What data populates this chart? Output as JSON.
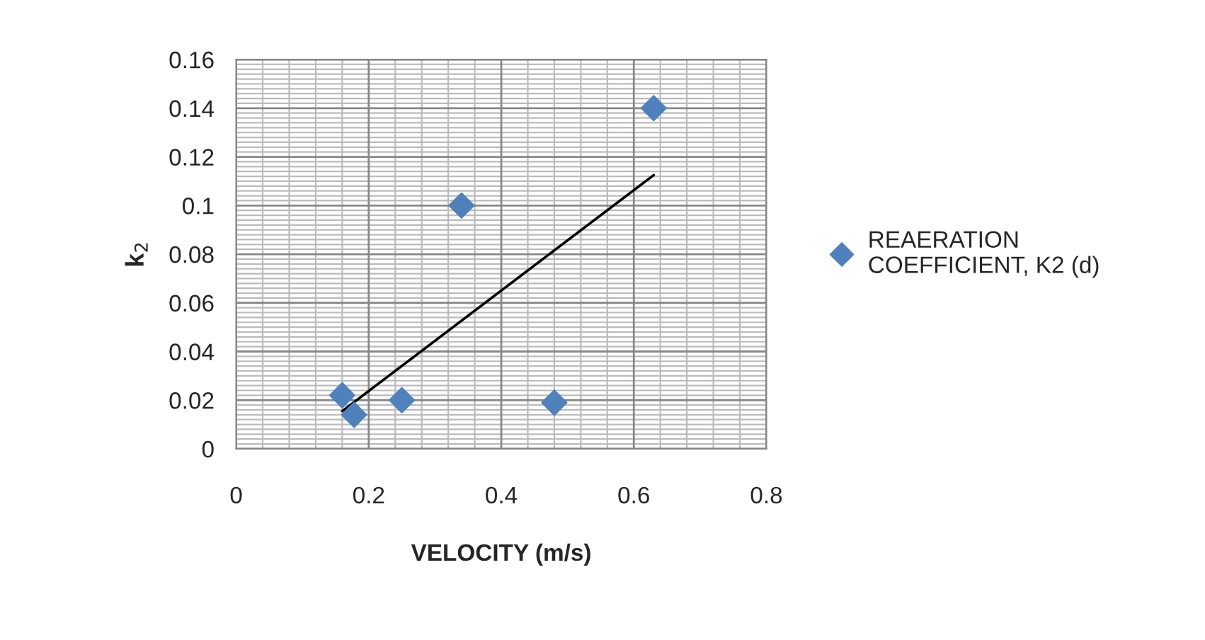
{
  "chart_data": {
    "type": "scatter",
    "xlabel": "VELOCITY (m/s)",
    "ylabel": "k$_{2}$",
    "xlim": [
      0,
      0.8
    ],
    "xticks": [
      0,
      0.2,
      0.4,
      0.6,
      0.8
    ],
    "ylim": [
      0,
      0.16
    ],
    "yticks": [
      0,
      0.02,
      0.04,
      0.06,
      0.08,
      0.1,
      0.12,
      0.14,
      0.16
    ],
    "grid": true,
    "legend": "right",
    "series": [
      {
        "name": "REAERATION COEFFICIENT, K2 (d)",
        "marker": "diamond",
        "color": "#4f81bd",
        "x": [
          0.16,
          0.178,
          0.25,
          0.34,
          0.48,
          0.63
        ],
        "values": [
          0.022,
          0.014,
          0.02,
          0.1,
          0.019,
          0.14
        ]
      },
      {
        "type": "line",
        "marker": "none",
        "color": "#000000",
        "line_style": "solid",
        "x": [
          0.16,
          0.63
        ],
        "values": [
          0.0155,
          0.1125
        ]
      }
    ]
  }
}
